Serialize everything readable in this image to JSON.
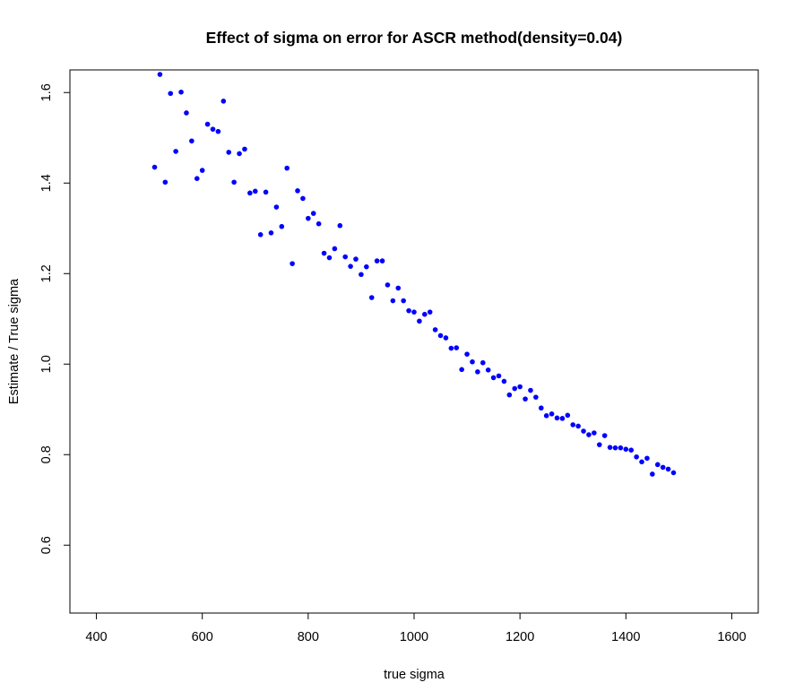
{
  "chart_data": {
    "type": "scatter",
    "title": "Effect of sigma on error for ASCR method(density=0.04)",
    "xlabel": "true sigma",
    "ylabel": "Estimate / True sigma",
    "xlim": [
      350,
      1650
    ],
    "ylim": [
      0.45,
      1.65
    ],
    "xticks": [
      "400",
      "600",
      "800",
      "1000",
      "1200",
      "1400",
      "1600"
    ],
    "yticks": [
      "0.6",
      "0.8",
      "1.0",
      "1.2",
      "1.4",
      "1.6"
    ],
    "grid": false,
    "marker_color": "#0000ff",
    "series": [
      {
        "x": [
          510,
          520,
          530,
          540,
          550,
          560,
          570,
          580,
          590,
          600,
          610,
          620,
          630,
          640,
          650,
          660,
          670,
          680,
          690,
          700,
          710,
          720,
          730,
          740,
          750,
          760,
          770,
          780,
          790,
          800,
          810,
          820,
          830,
          840,
          850,
          860,
          870,
          880,
          890,
          900,
          910,
          920,
          930,
          940,
          950,
          960,
          970,
          980,
          990,
          1000,
          1010,
          1020,
          1030,
          1040,
          1050,
          1060,
          1070,
          1080,
          1090,
          1100,
          1110,
          1120,
          1130,
          1140,
          1150,
          1160,
          1170,
          1180,
          1190,
          1200,
          1210,
          1220,
          1230,
          1240,
          1250,
          1260,
          1270,
          1280,
          1290,
          1300,
          1310,
          1320,
          1330,
          1340,
          1350,
          1360,
          1370,
          1380,
          1390,
          1400,
          1410,
          1420,
          1430,
          1440,
          1450,
          1460,
          1470,
          1480,
          1490
        ],
        "y": [
          1.435,
          1.64,
          1.402,
          1.598,
          1.47,
          1.601,
          1.555,
          1.493,
          1.41,
          1.428,
          1.53,
          1.519,
          1.514,
          1.581,
          1.468,
          1.402,
          1.465,
          1.475,
          1.378,
          1.382,
          1.286,
          1.38,
          1.29,
          1.347,
          1.304,
          1.433,
          1.222,
          1.383,
          1.366,
          1.322,
          1.333,
          1.31,
          1.245,
          1.235,
          1.255,
          1.306,
          1.237,
          1.216,
          1.232,
          1.198,
          1.215,
          1.147,
          1.228,
          1.228,
          1.175,
          1.14,
          1.168,
          1.14,
          1.118,
          1.115,
          1.095,
          1.11,
          1.115,
          1.076,
          1.063,
          1.058,
          1.035,
          1.036,
          0.988,
          1.022,
          1.005,
          0.983,
          1.003,
          0.987,
          0.97,
          0.974,
          0.962,
          0.932,
          0.946,
          0.95,
          0.923,
          0.942,
          0.927,
          0.903,
          0.886,
          0.89,
          0.881,
          0.88,
          0.887,
          0.866,
          0.863,
          0.852,
          0.844,
          0.848,
          0.822,
          0.842,
          0.816,
          0.815,
          0.815,
          0.812,
          0.81,
          0.795,
          0.784,
          0.792,
          0.757,
          0.778,
          0.772,
          0.768,
          0.76
        ]
      }
    ]
  }
}
